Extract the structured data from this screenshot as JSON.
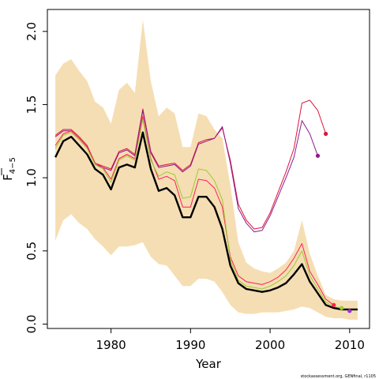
{
  "chart_data": {
    "type": "line",
    "xlabel": "Year",
    "ylabel": "F",
    "ylabel_subscript": "4−5",
    "xlim": [
      1972,
      2012.5
    ],
    "ylim": [
      -0.03,
      2.15
    ],
    "x_ticks": [
      1980,
      1990,
      2000,
      2010
    ],
    "y_ticks": [
      0.0,
      0.5,
      1.0,
      1.5,
      2.0
    ],
    "y_tick_labels": [
      "0.0",
      "0.5",
      "1.0",
      "1.5",
      "2.0"
    ],
    "grid": false,
    "legend": "none",
    "credit": "stockassessment.org, GENfinal, r1105",
    "band": {
      "color": "#f5deb3",
      "x": [
        1973,
        1974,
        1975,
        1976,
        1977,
        1978,
        1979,
        1980,
        1981,
        1982,
        1983,
        1984,
        1985,
        1986,
        1987,
        1988,
        1989,
        1990,
        1991,
        1992,
        1993,
        1994,
        1995,
        1996,
        1997,
        1998,
        1999,
        2000,
        2001,
        2002,
        2003,
        2004,
        2005,
        2006,
        2007,
        2008,
        2009,
        2010,
        2011
      ],
      "upper": [
        1.7,
        1.78,
        1.81,
        1.73,
        1.66,
        1.52,
        1.48,
        1.37,
        1.6,
        1.65,
        1.58,
        2.08,
        1.66,
        1.42,
        1.48,
        1.44,
        1.21,
        1.21,
        1.44,
        1.42,
        1.33,
        1.27,
        0.95,
        0.56,
        0.42,
        0.38,
        0.36,
        0.35,
        0.38,
        0.42,
        0.5,
        0.71,
        0.48,
        0.33,
        0.2,
        0.17,
        0.16,
        0.16,
        0.16
      ],
      "lower": [
        0.57,
        0.71,
        0.75,
        0.69,
        0.65,
        0.58,
        0.53,
        0.47,
        0.53,
        0.53,
        0.54,
        0.56,
        0.46,
        0.41,
        0.4,
        0.33,
        0.26,
        0.26,
        0.31,
        0.31,
        0.29,
        0.22,
        0.13,
        0.08,
        0.07,
        0.07,
        0.08,
        0.08,
        0.08,
        0.09,
        0.1,
        0.12,
        0.11,
        0.08,
        0.05,
        0.04,
        0.04,
        0.03,
        0.03
      ]
    },
    "series": [
      {
        "color": "#000000",
        "width": 2.4,
        "x": [
          1973,
          1974,
          1975,
          1976,
          1977,
          1978,
          1979,
          1980,
          1981,
          1982,
          1983,
          1984,
          1985,
          1986,
          1987,
          1988,
          1989,
          1990,
          1991,
          1992,
          1993,
          1994,
          1995,
          1996,
          1997,
          1998,
          1999,
          2000,
          2001,
          2002,
          2003,
          2004,
          2005,
          2006,
          2007,
          2008,
          2009,
          2010,
          2011
        ],
        "values": [
          1.14,
          1.25,
          1.28,
          1.22,
          1.16,
          1.06,
          1.02,
          0.92,
          1.07,
          1.09,
          1.07,
          1.31,
          1.06,
          0.91,
          0.93,
          0.88,
          0.73,
          0.73,
          0.87,
          0.87,
          0.8,
          0.65,
          0.4,
          0.28,
          0.24,
          0.23,
          0.22,
          0.23,
          0.25,
          0.28,
          0.34,
          0.41,
          0.29,
          0.21,
          0.13,
          0.11,
          0.1,
          0.1,
          0.1
        ]
      },
      {
        "color": "#ff1f5a",
        "width": 1.0,
        "x": [
          1973,
          1974,
          1975,
          1976,
          1977,
          1978,
          1979,
          1980,
          1981,
          1982,
          1983,
          1984,
          1985,
          1986,
          1987,
          1988,
          1989,
          1990,
          1991,
          1992,
          1993,
          1994,
          1995,
          1996,
          1997,
          1998,
          1999,
          2000,
          2001,
          2002,
          2003,
          2004,
          2005,
          2006,
          2007,
          2008
        ],
        "values": [
          1.22,
          1.3,
          1.32,
          1.27,
          1.21,
          1.1,
          1.07,
          0.99,
          1.13,
          1.16,
          1.13,
          1.42,
          1.13,
          0.99,
          1.01,
          0.98,
          0.8,
          0.8,
          0.99,
          0.98,
          0.93,
          0.8,
          0.46,
          0.33,
          0.29,
          0.28,
          0.27,
          0.29,
          0.32,
          0.37,
          0.45,
          0.55,
          0.36,
          0.27,
          0.17,
          0.13
        ]
      },
      {
        "color": "#9acd32",
        "width": 1.0,
        "x": [
          1973,
          1974,
          1975,
          1976,
          1977,
          1978,
          1979,
          1980,
          1981,
          1982,
          1983,
          1984,
          1985,
          1986,
          1987,
          1988,
          1989,
          1990,
          1991,
          1992,
          1993,
          1994,
          1995,
          1996,
          1997,
          1998,
          1999,
          2000,
          2001,
          2002,
          2003,
          2004,
          2005,
          2006,
          2007,
          2008,
          2009
        ],
        "values": [
          1.2,
          1.29,
          1.31,
          1.26,
          1.2,
          1.09,
          1.06,
          0.97,
          1.12,
          1.15,
          1.12,
          1.4,
          1.12,
          1.01,
          1.04,
          1.02,
          0.86,
          0.87,
          1.06,
          1.05,
          0.98,
          0.85,
          0.44,
          0.3,
          0.26,
          0.25,
          0.24,
          0.26,
          0.29,
          0.33,
          0.4,
          0.5,
          0.33,
          0.24,
          0.15,
          0.12,
          0.11
        ]
      },
      {
        "color": "#8b1a8b",
        "width": 1.0,
        "x": [
          1973,
          1974,
          1975,
          1976,
          1977,
          1978,
          1979,
          1980,
          1981,
          1982,
          1983,
          1984,
          1985,
          1986,
          1987,
          1988,
          1989,
          1990,
          1991,
          1992,
          1993,
          1994,
          1995,
          1996,
          1997,
          1998,
          1999,
          2000,
          2001,
          2002,
          2003,
          2004,
          2005,
          2006
        ],
        "values": [
          1.28,
          1.32,
          1.32,
          1.27,
          1.21,
          1.09,
          1.07,
          1.05,
          1.17,
          1.19,
          1.15,
          1.46,
          1.17,
          1.07,
          1.08,
          1.09,
          1.04,
          1.08,
          1.23,
          1.25,
          1.27,
          1.35,
          1.1,
          0.79,
          0.69,
          0.63,
          0.64,
          0.74,
          0.87,
          1.0,
          1.14,
          1.39,
          1.3,
          1.15
        ]
      },
      {
        "color": "#dc143c",
        "width": 1.0,
        "x": [
          1973,
          1974,
          1975,
          1976,
          1977,
          1978,
          1979,
          1980,
          1981,
          1982,
          1983,
          1984,
          1985,
          1986,
          1987,
          1988,
          1989,
          1990,
          1991,
          1992,
          1993,
          1994,
          1995,
          1996,
          1997,
          1998,
          1999,
          2000,
          2001,
          2002,
          2003,
          2004,
          2005,
          2006,
          2007
        ],
        "values": [
          1.29,
          1.33,
          1.33,
          1.28,
          1.22,
          1.1,
          1.08,
          1.06,
          1.18,
          1.2,
          1.16,
          1.47,
          1.18,
          1.08,
          1.09,
          1.1,
          1.05,
          1.09,
          1.24,
          1.26,
          1.27,
          1.34,
          1.12,
          0.82,
          0.71,
          0.65,
          0.66,
          0.76,
          0.9,
          1.04,
          1.2,
          1.51,
          1.53,
          1.46,
          1.3
        ]
      }
    ],
    "endpoints": [
      {
        "x": 2007,
        "y": 1.3,
        "color": "#dc143c"
      },
      {
        "x": 2006,
        "y": 1.15,
        "color": "#8b1a8b"
      },
      {
        "x": 2008,
        "y": 0.13,
        "color": "#ff1f5a"
      },
      {
        "x": 2009,
        "y": 0.11,
        "color": "#9acd32"
      },
      {
        "x": 2010,
        "y": 0.09,
        "color": "#9932cc"
      }
    ]
  }
}
